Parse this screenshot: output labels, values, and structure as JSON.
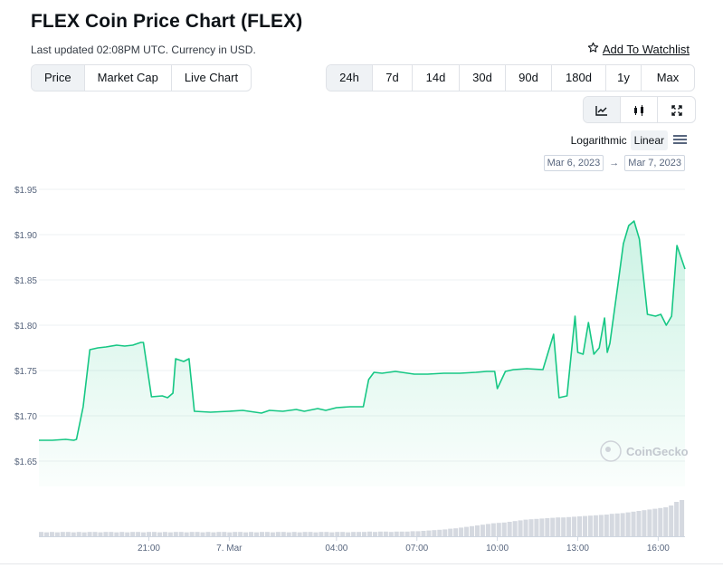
{
  "header": {
    "title": "FLEX Coin Price Chart (FLEX)",
    "subtitle": "Last updated 02:08PM UTC. Currency in USD.",
    "watchlist_label": "Add To Watchlist"
  },
  "view_tabs": [
    {
      "label": "Price",
      "active": true
    },
    {
      "label": "Market Cap",
      "active": false
    },
    {
      "label": "Live Chart",
      "active": false
    }
  ],
  "range_tabs": [
    {
      "label": "24h",
      "active": true
    },
    {
      "label": "7d",
      "active": false
    },
    {
      "label": "14d",
      "active": false
    },
    {
      "label": "30d",
      "active": false
    },
    {
      "label": "90d",
      "active": false
    },
    {
      "label": "180d",
      "active": false
    },
    {
      "label": "1y",
      "active": false
    },
    {
      "label": "Max",
      "active": false
    }
  ],
  "chart_type_buttons": [
    {
      "icon": "line-chart-icon",
      "active": true
    },
    {
      "icon": "candlestick-icon",
      "active": false
    },
    {
      "icon": "fullscreen-icon",
      "active": false
    }
  ],
  "scale": {
    "logarithmic_label": "Logarithmic",
    "linear_label": "Linear",
    "active": "Linear"
  },
  "date_range": {
    "from": "Mar 6, 2023",
    "arrow": "→",
    "to": "Mar 7, 2023"
  },
  "colors": {
    "line": "#16c784",
    "fill_top": "#16c784",
    "grid": "#eef0f3",
    "axis_text": "#58667e",
    "volume": "#d5d9e0"
  },
  "chart_data": {
    "type": "area",
    "title": "",
    "xlabel": "",
    "ylabel": "",
    "y_ticks": [
      "$1.95",
      "$1.90",
      "$1.85",
      "$1.80",
      "$1.75",
      "$1.70",
      "$1.65"
    ],
    "y_tick_values": [
      1.95,
      1.9,
      1.85,
      1.8,
      1.75,
      1.7,
      1.65
    ],
    "ylim": [
      1.622,
      1.962
    ],
    "x_ticks": [
      "21:00",
      "7. Mar",
      "04:00",
      "07:00",
      "10:00",
      "13:00",
      "16:00"
    ],
    "x_tick_hours": [
      21,
      24,
      28,
      31,
      34,
      37,
      40
    ],
    "xlim_hours": [
      16.9,
      41.0
    ],
    "x_unit": "hours since 00:00 Mar 6 (UTC)",
    "watermark": "CoinGecko",
    "series": [
      {
        "name": "",
        "x": [
          16.9,
          17.4,
          17.9,
          18.2,
          18.3,
          18.55,
          18.8,
          19.1,
          19.4,
          19.8,
          20.1,
          20.4,
          20.7,
          20.8,
          21.1,
          21.5,
          21.7,
          21.9,
          22.0,
          22.3,
          22.5,
          22.7,
          23.3,
          24.0,
          24.5,
          25.2,
          25.5,
          26.0,
          26.5,
          26.8,
          27.3,
          27.6,
          28.0,
          28.5,
          29.0,
          29.2,
          29.4,
          29.7,
          30.2,
          30.9,
          31.4,
          32.0,
          32.6,
          33.2,
          33.6,
          33.9,
          34.0,
          34.3,
          34.6,
          35.1,
          35.7,
          36.1,
          36.3,
          36.6,
          36.9,
          37.0,
          37.2,
          37.4,
          37.6,
          37.8,
          38.0,
          38.1,
          38.2,
          38.5,
          38.7,
          38.9,
          39.1,
          39.3,
          39.6,
          39.9,
          40.1,
          40.3,
          40.5,
          40.7,
          41.0
        ],
        "values": [
          1.673,
          1.673,
          1.674,
          1.673,
          1.674,
          1.71,
          1.773,
          1.775,
          1.776,
          1.778,
          1.777,
          1.778,
          1.781,
          1.781,
          1.721,
          1.722,
          1.72,
          1.725,
          1.763,
          1.76,
          1.763,
          1.705,
          1.704,
          1.705,
          1.706,
          1.703,
          1.706,
          1.705,
          1.707,
          1.705,
          1.708,
          1.706,
          1.709,
          1.71,
          1.71,
          1.74,
          1.748,
          1.747,
          1.749,
          1.746,
          1.746,
          1.747,
          1.747,
          1.748,
          1.749,
          1.749,
          1.73,
          1.749,
          1.751,
          1.752,
          1.751,
          1.79,
          1.72,
          1.722,
          1.81,
          1.77,
          1.768,
          1.803,
          1.768,
          1.775,
          1.808,
          1.77,
          1.78,
          1.845,
          1.89,
          1.91,
          1.915,
          1.895,
          1.812,
          1.81,
          1.812,
          1.8,
          1.81,
          1.888,
          1.862
        ]
      }
    ],
    "volume": {
      "name": "Volume",
      "x_start": 16.9,
      "x_end": 41.0,
      "relative_values": [
        0.12,
        0.11,
        0.12,
        0.11,
        0.12,
        0.12,
        0.11,
        0.12,
        0.11,
        0.12,
        0.12,
        0.11,
        0.12,
        0.12,
        0.11,
        0.12,
        0.11,
        0.12,
        0.12,
        0.11,
        0.12,
        0.12,
        0.11,
        0.12,
        0.11,
        0.12,
        0.12,
        0.11,
        0.12,
        0.12,
        0.11,
        0.12,
        0.11,
        0.12,
        0.12,
        0.11,
        0.12,
        0.12,
        0.11,
        0.12,
        0.11,
        0.12,
        0.12,
        0.11,
        0.12,
        0.12,
        0.11,
        0.12,
        0.11,
        0.12,
        0.12,
        0.11,
        0.12,
        0.12,
        0.11,
        0.12,
        0.12,
        0.11,
        0.12,
        0.12,
        0.12,
        0.13,
        0.12,
        0.13,
        0.13,
        0.12,
        0.13,
        0.13,
        0.13,
        0.14,
        0.14,
        0.15,
        0.16,
        0.17,
        0.18,
        0.19,
        0.21,
        0.22,
        0.24,
        0.26,
        0.28,
        0.3,
        0.32,
        0.34,
        0.36,
        0.37,
        0.38,
        0.4,
        0.42,
        0.44,
        0.46,
        0.47,
        0.48,
        0.49,
        0.5,
        0.51,
        0.52,
        0.52,
        0.53,
        0.54,
        0.55,
        0.56,
        0.57,
        0.58,
        0.59,
        0.6,
        0.62,
        0.63,
        0.64,
        0.66,
        0.68,
        0.7,
        0.72,
        0.74,
        0.76,
        0.78,
        0.8,
        0.85,
        0.95,
        1.0
      ]
    }
  }
}
